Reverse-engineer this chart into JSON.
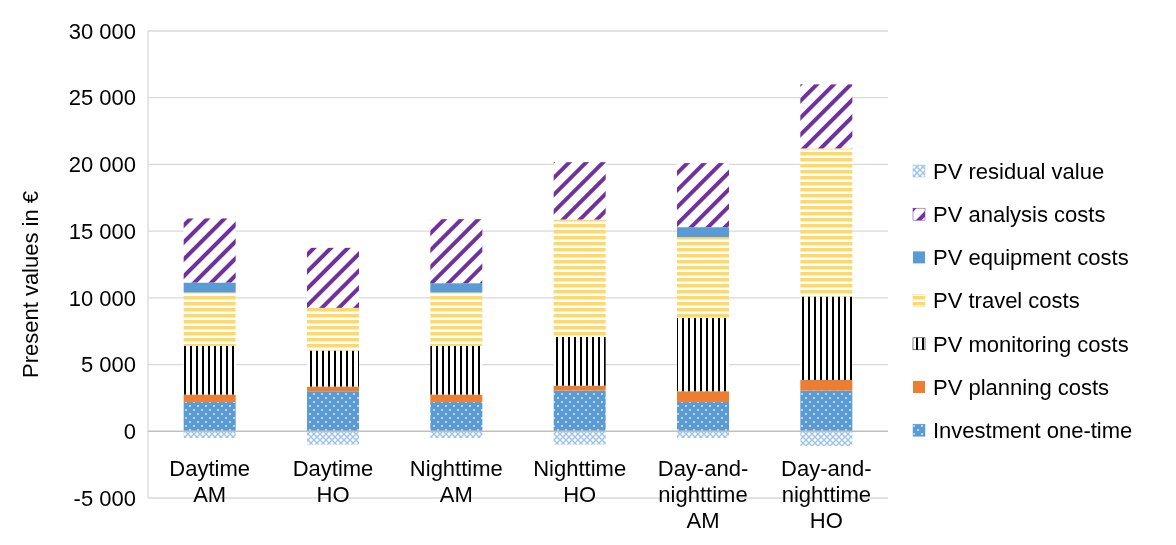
{
  "chart_data": {
    "type": "bar",
    "stacked": true,
    "ylabel": "Present values in €",
    "categories": [
      "Daytime AM",
      "Daytime HO",
      "Nighttime AM",
      "Nighttime HO",
      "Day-and-nighttime AM",
      "Day-and-nighttime HO"
    ],
    "series": [
      {
        "name": "Investment one-time",
        "color": "#5b9bd5",
        "values": [
          2200,
          3000,
          2200,
          3050,
          2200,
          3050
        ]
      },
      {
        "name": "PV planning costs",
        "color": "#ed7d31",
        "values": [
          550,
          350,
          550,
          370,
          800,
          800
        ]
      },
      {
        "name": "PV monitoring costs",
        "color": "#000000",
        "values": [
          3650,
          2700,
          3650,
          3650,
          5500,
          6250
        ]
      },
      {
        "name": "PV travel costs",
        "color": "#ffd966",
        "values": [
          4000,
          3200,
          4000,
          8800,
          6050,
          11100
        ]
      },
      {
        "name": "PV equipment costs",
        "color": "#5b9bd5",
        "values": [
          750,
          0,
          700,
          0,
          750,
          0
        ]
      },
      {
        "name": "PV analysis costs",
        "color": "#7030a0",
        "values": [
          4800,
          4500,
          4800,
          4300,
          4800,
          4800
        ]
      },
      {
        "name": "PV residual value",
        "color": "#9dc3e6",
        "values": [
          -500,
          -1000,
          -500,
          -1000,
          -500,
          -1100
        ]
      }
    ],
    "ylim": [
      -5000,
      30000
    ],
    "yticks": [
      {
        "value": -5000,
        "label": "-5 000"
      },
      0,
      {
        "value": 5000,
        "label": "5 000"
      },
      {
        "value": 10000,
        "label": "10 000"
      },
      {
        "value": 15000,
        "label": "15 000"
      },
      {
        "value": 20000,
        "label": "20 000"
      },
      {
        "value": 25000,
        "label": "25 000"
      },
      {
        "value": 30000,
        "label": "30 000"
      }
    ],
    "grid": "y",
    "legend": "right"
  }
}
